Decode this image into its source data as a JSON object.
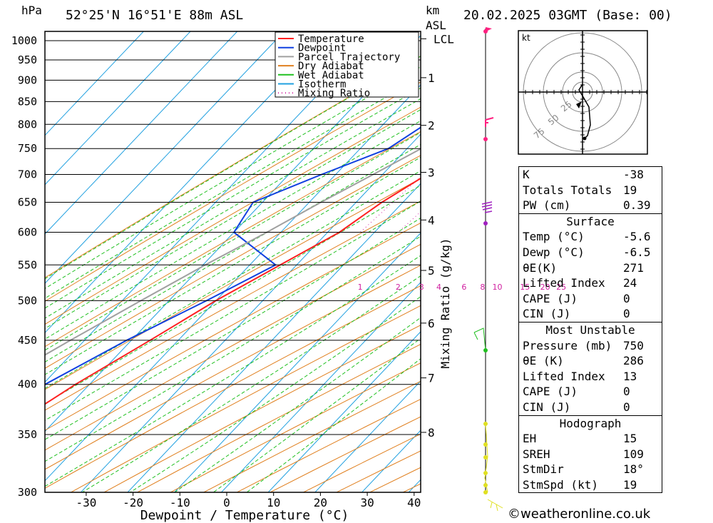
{
  "header": {
    "unit_left": "hPa",
    "location": "52°25'N  16°51'E  88m  ASL",
    "unit_km": "km",
    "unit_asl": "ASL",
    "datetime": "20.02.2025  03GMT  (Base: 00)"
  },
  "chart_data": {
    "type": "line",
    "xlabel": "Dewpoint / Temperature (°C)",
    "ylabel": "",
    "mixing_ratio_axis_label": "Mixing Ratio (g/kg)",
    "x_ticks": [
      -30,
      -20,
      -10,
      0,
      10,
      20,
      30,
      40
    ],
    "pressure_levels": [
      300,
      350,
      400,
      450,
      500,
      550,
      600,
      650,
      700,
      750,
      800,
      850,
      900,
      950,
      1000
    ],
    "xlim": [
      -40,
      41
    ],
    "km_ticks": [
      {
        "label": "8",
        "p": 352
      },
      {
        "label": "7",
        "p": 407
      },
      {
        "label": "6",
        "p": 471
      },
      {
        "label": "5",
        "p": 542
      },
      {
        "label": "4",
        "p": 620
      },
      {
        "label": "3",
        "p": 704
      },
      {
        "label": "2",
        "p": 798
      },
      {
        "label": "1",
        "p": 906
      },
      {
        "label": "LCL",
        "p": 1005
      }
    ],
    "mixing_ratio_labels": [
      "1",
      "2",
      "3",
      "4",
      "6",
      "8",
      "10",
      "15",
      "20",
      "25"
    ],
    "mixing_ratio_values": [
      1,
      2,
      3,
      4,
      6,
      8,
      10,
      15,
      20,
      25
    ],
    "legend": {
      "placement": "top-right",
      "entries": [
        {
          "name": "Temperature",
          "color": "#ff2020"
        },
        {
          "name": "Dewpoint",
          "color": "#1040e0"
        },
        {
          "name": "Parcel Trajectory",
          "color": "#a0a0a0"
        },
        {
          "name": "Dry Adiabat",
          "color": "#e08020"
        },
        {
          "name": "Wet Adiabat",
          "color": "#20c020"
        },
        {
          "name": "Isotherm",
          "color": "#20a0e0"
        },
        {
          "name": "Mixing Ratio",
          "color": "#d020a0"
        }
      ]
    },
    "series": [
      {
        "name": "Temperature",
        "color": "#ff2020",
        "points": [
          [
            1013,
            -5.6
          ],
          [
            1000,
            -5.0
          ],
          [
            975,
            -6.5
          ],
          [
            950,
            -8.5
          ],
          [
            925,
            -10.5
          ],
          [
            900,
            -12.5
          ],
          [
            875,
            -14.0
          ],
          [
            850,
            -15.5
          ],
          [
            800,
            -16.0
          ],
          [
            750,
            -17.0
          ],
          [
            700,
            -20.5
          ],
          [
            650,
            -24.5
          ],
          [
            600,
            -27.5
          ],
          [
            550,
            -33.5
          ],
          [
            500,
            -40.0
          ],
          [
            450,
            -46.0
          ],
          [
            400,
            -53.0
          ],
          [
            350,
            -59.5
          ],
          [
            300,
            -66.0
          ]
        ]
      },
      {
        "name": "Dewpoint",
        "color": "#1040e0",
        "points": [
          [
            1013,
            -6.5
          ],
          [
            1000,
            -7.5
          ],
          [
            975,
            -10.0
          ],
          [
            950,
            -12.0
          ],
          [
            925,
            -13.5
          ],
          [
            900,
            -16.0
          ],
          [
            875,
            -21.0
          ],
          [
            850,
            -24.5
          ],
          [
            800,
            -31.0
          ],
          [
            750,
            -34.0
          ],
          [
            700,
            -43.0
          ],
          [
            650,
            -52.0
          ],
          [
            600,
            -50.0
          ],
          [
            550,
            -34.5
          ],
          [
            500,
            -42.0
          ],
          [
            450,
            -51.0
          ],
          [
            400,
            -59.5
          ],
          [
            350,
            -68.5
          ],
          [
            300,
            -76.0
          ]
        ]
      },
      {
        "name": "Parcel Trajectory",
        "color": "#a0a0a0",
        "points": [
          [
            1013,
            -5.6
          ],
          [
            1000,
            -6.5
          ],
          [
            950,
            -10.0
          ],
          [
            900,
            -14.0
          ],
          [
            850,
            -18.2
          ],
          [
            800,
            -22.5
          ],
          [
            750,
            -27.0
          ],
          [
            700,
            -32.0
          ],
          [
            650,
            -37.5
          ],
          [
            600,
            -43.0
          ],
          [
            550,
            -49.5
          ],
          [
            500,
            -56.0
          ],
          [
            450,
            -63.0
          ],
          [
            400,
            -70.5
          ],
          [
            350,
            -79.0
          ],
          [
            300,
            -88.0
          ]
        ]
      }
    ]
  },
  "hodograph": {
    "unit": "kt",
    "ring_labels": [
      "25",
      "50",
      "75"
    ]
  },
  "winds": {
    "color_stops": [
      "#ff2080",
      "#c020c0",
      "#20c020",
      "#e0e020"
    ]
  },
  "indices": {
    "k_label": "K",
    "k_value": "-38",
    "tt_label": "Totals Totals",
    "tt_value": "19",
    "pw_label": "PW (cm)",
    "pw_value": "0.39"
  },
  "surface": {
    "title": "Surface",
    "temp_label": "Temp (°C)",
    "temp_value": "-5.6",
    "dewp_label": "Dewp (°C)",
    "dewp_value": "-6.5",
    "theta_label": "θE(K)",
    "theta_value": "271",
    "li_label": "Lifted Index",
    "li_value": "24",
    "cape_label": "CAPE (J)",
    "cape_value": "0",
    "cin_label": "CIN (J)",
    "cin_value": "0"
  },
  "most_unstable": {
    "title": "Most Unstable",
    "pressure_label": "Pressure (mb)",
    "pressure_value": "750",
    "theta_label": "θE (K)",
    "theta_value": "286",
    "li_label": "Lifted Index",
    "li_value": "13",
    "cape_label": "CAPE (J)",
    "cape_value": "0",
    "cin_label": "CIN (J)",
    "cin_value": "0"
  },
  "hodograph_stats": {
    "title": "Hodograph",
    "eh_label": "EH",
    "eh_value": "15",
    "sreh_label": "SREH",
    "sreh_value": "109",
    "stmdir_label": "StmDir",
    "stmdir_value": "18°",
    "stmspd_label": "StmSpd (kt)",
    "stmspd_value": "19"
  },
  "copyright": "©weatheronline.co.uk"
}
